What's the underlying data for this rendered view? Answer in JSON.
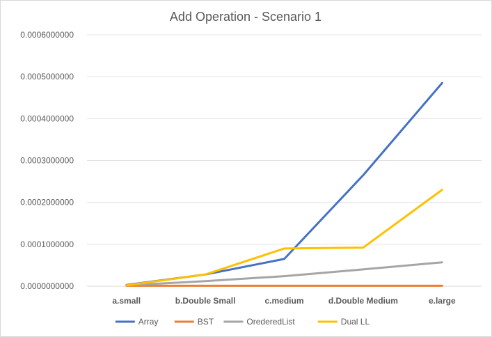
{
  "chart_data": {
    "type": "line",
    "title": "Add Operation - Scenario 1",
    "xlabel": "",
    "ylabel": "",
    "categories": [
      "a.small",
      "b.Double Small",
      "c.medium",
      "d.Double Medium",
      "e.large"
    ],
    "ylim": [
      0,
      0.0006
    ],
    "yticks": [
      "0.0000000000",
      "0.0001000000",
      "0.0002000000",
      "0.0003000000",
      "0.0004000000",
      "0.0005000000",
      "0.0006000000"
    ],
    "grid": true,
    "legend_position": "bottom",
    "series": [
      {
        "name": "Array",
        "color": "#4472c4",
        "values": [
          3e-06,
          2.8e-05,
          6.5e-05,
          0.000265,
          0.000485
        ]
      },
      {
        "name": "BST",
        "color": "#ed7d31",
        "values": [
          1e-06,
          1e-06,
          1e-06,
          1e-06,
          1e-06
        ]
      },
      {
        "name": "OrederedList",
        "color": "#a5a5a5",
        "values": [
          2e-06,
          1.2e-05,
          2.4e-05,
          4e-05,
          5.7e-05
        ]
      },
      {
        "name": "Dual LL",
        "color": "#ffc000",
        "values": [
          2e-06,
          2.8e-05,
          9e-05,
          9.2e-05,
          0.00023
        ]
      }
    ]
  }
}
